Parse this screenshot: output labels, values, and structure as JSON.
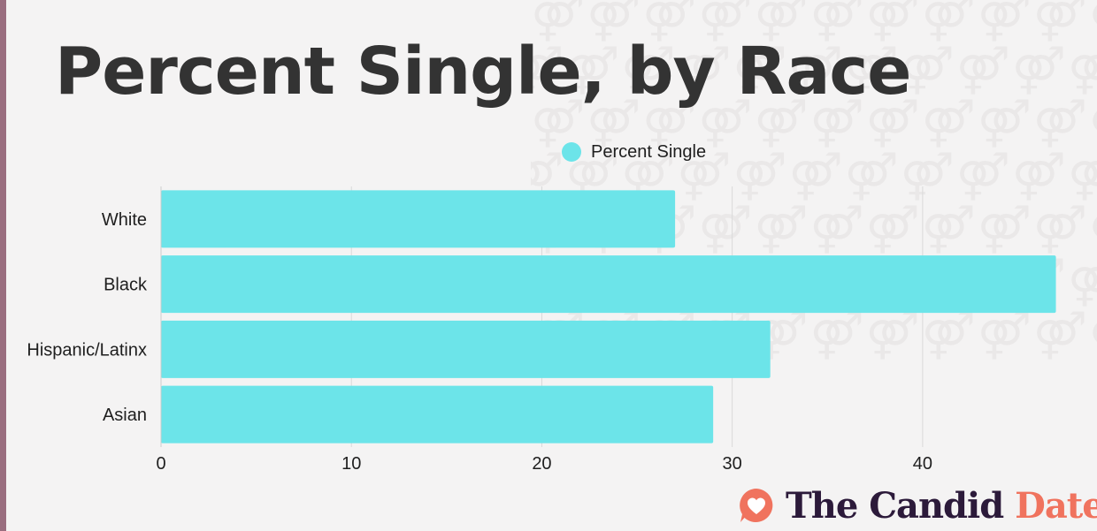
{
  "title": "Percent Single, by Race",
  "brand": {
    "logo_icon": "heart-speech-bubble-icon",
    "name_part1": "The Candid",
    "name_part2": "Date",
    "colors": {
      "dark": "#2c1a3a",
      "accent": "#f0735e"
    }
  },
  "background": {
    "pattern_icon": "gender-symbols-pattern"
  },
  "chart_data": {
    "type": "bar",
    "orientation": "horizontal",
    "categories": [
      "White",
      "Black",
      "Hispanic/Latinx",
      "Asian"
    ],
    "series": [
      {
        "name": "Percent Single",
        "values": [
          27,
          47,
          32,
          29
        ],
        "color": "#6ce4e9"
      }
    ],
    "x_ticks": [
      0,
      10,
      20,
      30,
      40
    ],
    "xlim": [
      0,
      47.3
    ],
    "xlabel": "",
    "ylabel": "",
    "grid": "vertical",
    "legend": "top-center"
  }
}
